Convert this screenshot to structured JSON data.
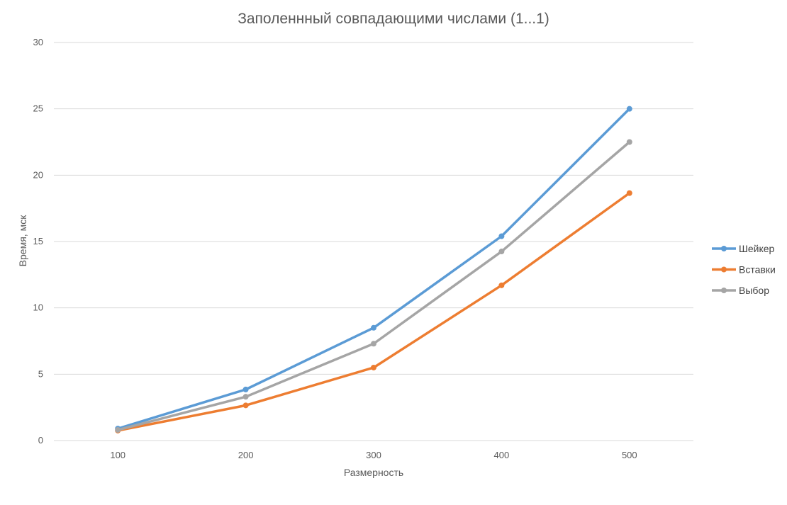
{
  "chart_data": {
    "type": "line",
    "title": "Заполеннный совпадающими числами (1...1)",
    "xlabel": "Размерность",
    "ylabel": "Время, мск",
    "categories": [
      "100",
      "200",
      "300",
      "400",
      "500"
    ],
    "ylim": [
      0,
      30
    ],
    "yticks": [
      "0",
      "5",
      "10",
      "15",
      "20",
      "25",
      "30"
    ],
    "grid": true,
    "legend_position": "right",
    "series": [
      {
        "name": "Шейкер",
        "color": "#5b9bd5",
        "values": [
          0.9,
          3.85,
          8.5,
          15.4,
          25.0
        ]
      },
      {
        "name": "Вставки",
        "color": "#ed7d31",
        "values": [
          0.75,
          2.65,
          5.5,
          11.7,
          18.65
        ]
      },
      {
        "name": "Выбор",
        "color": "#a5a5a5",
        "values": [
          0.8,
          3.3,
          7.3,
          14.25,
          22.5
        ]
      }
    ]
  }
}
